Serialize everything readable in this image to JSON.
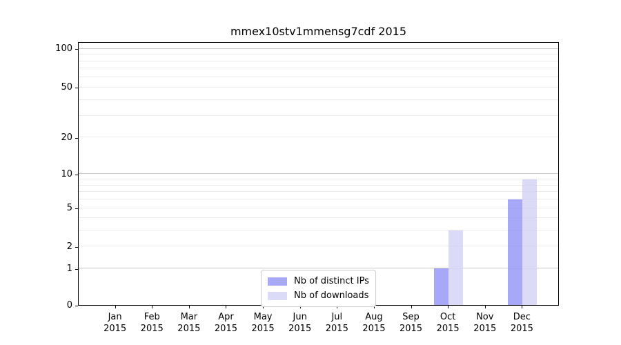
{
  "chart_data": {
    "type": "bar",
    "title": "mmex10stv1mmensg7cdf 2015",
    "year_label": "2015",
    "categories": [
      "Jan",
      "Feb",
      "Mar",
      "Apr",
      "May",
      "Jun",
      "Jul",
      "Aug",
      "Sep",
      "Oct",
      "Nov",
      "Dec"
    ],
    "series": [
      {
        "name": "Nb of distinct IPs",
        "color": "rgba(139,139,245,0.75)",
        "values": [
          0,
          0,
          0,
          0,
          0,
          0,
          0,
          0,
          0,
          1,
          0,
          6
        ]
      },
      {
        "name": "Nb of downloads",
        "color": "rgba(207,207,246,0.75)",
        "values": [
          0,
          0,
          0,
          0,
          0,
          0,
          0,
          0,
          0,
          3,
          0,
          9
        ]
      }
    ],
    "y_axis": {
      "scale": "log1p",
      "tick_values": [
        0,
        1,
        2,
        5,
        10,
        20,
        50,
        100
      ],
      "tick_labels": [
        "0",
        "1",
        "2",
        "5",
        "10",
        "20",
        "50",
        "100"
      ],
      "major_gridlines": [
        1,
        10,
        100
      ],
      "minor_gridlines": [
        2,
        3,
        4,
        5,
        6,
        7,
        8,
        9,
        20,
        30,
        40,
        50,
        60,
        70,
        80,
        90
      ],
      "range": [
        0,
        110
      ]
    },
    "x_axis": {
      "label_format": "month over year"
    },
    "legend": {
      "position": "lower-center",
      "entries": [
        "Nb of distinct IPs",
        "Nb of downloads"
      ]
    },
    "colors": {
      "background": "#ffffff",
      "spine": "#000000",
      "text": "#000000",
      "major_grid": "#c9c9c9",
      "minor_grid": "#ebebeb",
      "legend_border": "#cccccc"
    },
    "grid": true
  }
}
